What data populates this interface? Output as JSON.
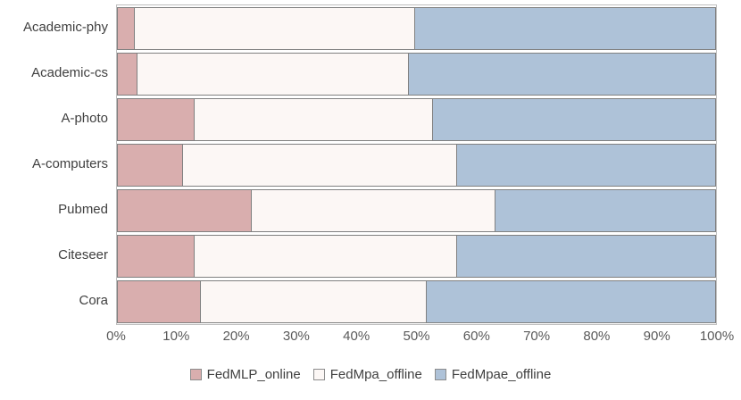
{
  "chart_data": {
    "type": "bar",
    "orientation": "horizontal",
    "stacked": true,
    "stacked_100_percent": true,
    "title": "",
    "xlabel": "",
    "ylabel": "",
    "grid": false,
    "legend_position": "bottom",
    "categories": [
      "Academic-phy",
      "Academic-cs",
      "A-photo",
      "A-computers",
      "Pubmed",
      "Citeseer",
      "Cora"
    ],
    "series": [
      {
        "name": "FedMLP_online",
        "color": "#d9aeae",
        "values": [
          3,
          3.5,
          13,
          11,
          22.5,
          13,
          14
        ]
      },
      {
        "name": "FedMpa_offline",
        "color": "#fcf7f5",
        "values": [
          47,
          45.5,
          40,
          46,
          41,
          44,
          38
        ]
      },
      {
        "name": "FedMpae_offline",
        "color": "#aec2d8",
        "values": [
          50,
          51,
          47,
          43,
          36.5,
          43,
          48
        ]
      }
    ],
    "x_axis": {
      "min": 0,
      "max": 100,
      "tick_interval": 10,
      "ticks": [
        "0%",
        "10%",
        "20%",
        "30%",
        "40%",
        "50%",
        "60%",
        "70%",
        "80%",
        "90%",
        "100%"
      ]
    }
  },
  "style": {
    "bar_stroke_color": "#808080",
    "plot_border_color": "#bfbfbf",
    "category_text_color": "#404040",
    "tick_text_color": "#595959",
    "background_color": "#ffffff"
  }
}
